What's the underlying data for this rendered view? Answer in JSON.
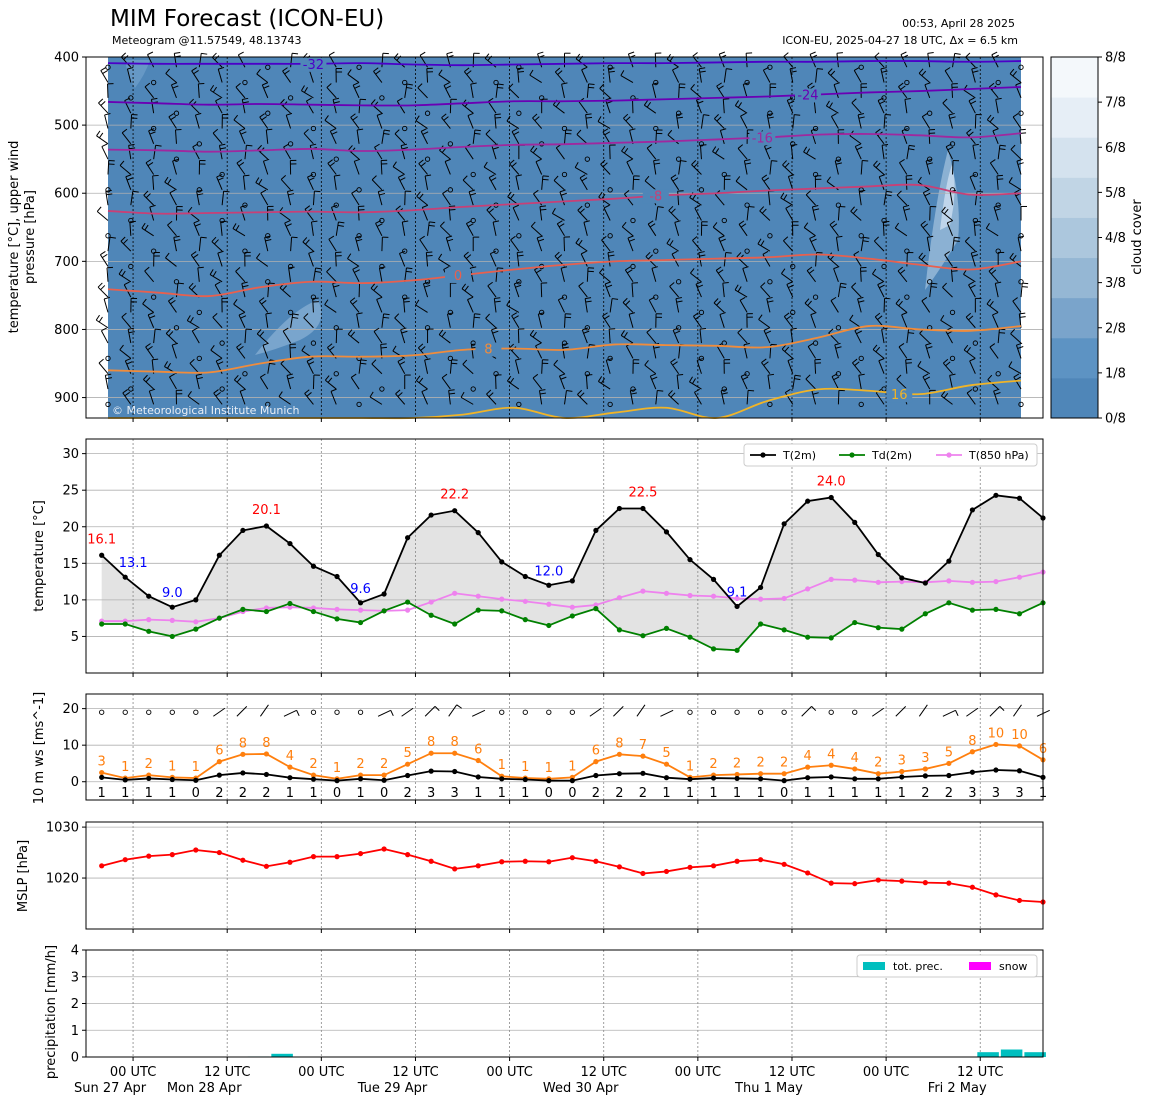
{
  "header": {
    "title": "MIM Forecast (ICON-EU)",
    "subtitle": "Meteogram @11.57549, 48.13743",
    "run_time": "00:53, April 28 2025",
    "run_info": "ICON-EU, 2025-04-27 18 UTC, Δx = 6.5 km",
    "copyright": "© Meteorological Institute Munich"
  },
  "colors": {
    "cloud_base": "#4f86b8",
    "t2m": "#000000",
    "td2m": "#008000",
    "t850": "#ee82ee",
    "tmax": "#ff0000",
    "tmin": "#0000ff",
    "wind_max": "#ff7f0e",
    "wind_mean": "#000000",
    "mslp": "#ff0000",
    "precip": "#00bfbf",
    "snow": "#ff00ff",
    "fill": "#e3e3e3"
  },
  "x_axis": {
    "ticks": [
      {
        "t": 4,
        "label": "00 UTC",
        "day": "Sun 27 Apr"
      },
      {
        "t": 16,
        "label": "12 UTC",
        "day": "Mon 28 Apr"
      },
      {
        "t": 28,
        "label": "00 UTC",
        "day": ""
      },
      {
        "t": 40,
        "label": "12 UTC",
        "day": "Tue 29 Apr"
      },
      {
        "t": 52,
        "label": "00 UTC",
        "day": ""
      },
      {
        "t": 64,
        "label": "12 UTC",
        "day": "Wed 30 Apr"
      },
      {
        "t": 76,
        "label": "00 UTC",
        "day": ""
      },
      {
        "t": 88,
        "label": "12 UTC",
        "day": "Thu 1 May"
      },
      {
        "t": 100,
        "label": "00 UTC",
        "day": ""
      },
      {
        "t": 112,
        "label": "12 UTC",
        "day": "Fri 2 May"
      }
    ],
    "range": [
      -2,
      120
    ]
  },
  "chart_data": [
    {
      "type": "heatmap",
      "name": "upper-air",
      "ylabel": "temperature [$^\\circ$C], upper wind\npressure [hPa]",
      "ylim": [
        930,
        400
      ],
      "yticks": [
        400,
        500,
        600,
        700,
        800,
        900
      ],
      "colorbar": {
        "label": "cloud cover",
        "ticks": [
          "0/8",
          "1/8",
          "2/8",
          "3/8",
          "4/8",
          "5/8",
          "6/8",
          "7/8",
          "8/8"
        ],
        "colors": [
          "#4f86b8",
          "#5d93c3",
          "#7aa4cb",
          "#95b7d4",
          "#acc7dd",
          "#c1d5e5",
          "#d4e2ee",
          "#e6eef6",
          "#f4f8fb"
        ]
      },
      "levels": [
        {
          "label": "-32",
          "color": "#4b00c8",
          "label_t": 27,
          "pressures": [
            409,
            410,
            410,
            410,
            410,
            409,
            411,
            412,
            411,
            410,
            409,
            409,
            408,
            407,
            407,
            406,
            406,
            407,
            406
          ]
        },
        {
          "label": "-24",
          "color": "#6a00b4",
          "label_t": 92,
          "pressures": [
            466,
            468,
            470,
            469,
            470,
            471,
            471,
            468,
            465,
            465,
            464,
            462,
            460,
            458,
            455,
            452,
            450,
            447,
            444
          ]
        },
        {
          "label": "-16",
          "color": "#a0289e",
          "label_t": 86,
          "pressures": [
            536,
            537,
            539,
            537,
            535,
            538,
            536,
            532,
            529,
            528,
            526,
            524,
            521,
            518,
            514,
            513,
            515,
            518,
            512
          ]
        },
        {
          "label": "-8",
          "color": "#c84076",
          "label_t": 72,
          "pressures": [
            626,
            630,
            629,
            628,
            627,
            628,
            625,
            620,
            616,
            612,
            608,
            603,
            600,
            596,
            593,
            590,
            588,
            602,
            600
          ]
        },
        {
          "label": "0",
          "color": "#e8604e",
          "label_t": 46,
          "pressures": [
            741,
            746,
            751,
            738,
            730,
            732,
            728,
            720,
            712,
            705,
            700,
            698,
            696,
            694,
            690,
            696,
            705,
            712,
            700
          ]
        },
        {
          "label": "8",
          "color": "#f08c3c",
          "label_t": 50,
          "pressures": [
            860,
            862,
            863,
            850,
            840,
            840,
            838,
            830,
            828,
            830,
            822,
            823,
            824,
            826,
            812,
            795,
            800,
            802,
            795
          ]
        },
        {
          "label": "16",
          "color": "#f0b428",
          "label_t": 104,
          "pressures": [
            930,
            930,
            930,
            930,
            930,
            930,
            930,
            925,
            915,
            930,
            922,
            915,
            930,
            905,
            888,
            890,
            895,
            882,
            875
          ]
        }
      ]
    },
    {
      "type": "line",
      "name": "temperature",
      "ylabel": "temperature [$^\\circ$C]",
      "ylim": [
        0,
        32
      ],
      "yticks": [
        5,
        10,
        15,
        20,
        25,
        30
      ],
      "x": [
        0,
        3,
        6,
        9,
        12,
        15,
        18,
        21,
        24,
        27,
        30,
        33,
        36,
        39,
        42,
        45,
        48,
        51,
        54,
        57,
        60,
        63,
        66,
        69,
        72,
        75,
        78,
        81,
        84,
        87,
        90,
        93,
        96,
        99,
        102,
        105,
        108,
        111,
        114,
        117,
        120
      ],
      "series": [
        {
          "name": "T(2m)",
          "color": "#000000",
          "values": [
            16.1,
            13.1,
            10.5,
            9.0,
            10.0,
            16.1,
            19.5,
            20.1,
            17.7,
            14.6,
            13.2,
            9.6,
            10.8,
            18.5,
            21.6,
            22.2,
            19.2,
            15.2,
            13.2,
            12.0,
            12.6,
            19.5,
            22.5,
            22.5,
            19.3,
            15.5,
            12.8,
            9.1,
            11.7,
            20.4,
            23.5,
            24.0,
            20.6,
            16.2,
            13.0,
            12.3,
            15.3,
            22.3,
            24.3,
            23.9,
            21.2
          ]
        },
        {
          "name": "Td(2m)",
          "color": "#008000",
          "values": [
            6.7,
            6.7,
            5.7,
            5.0,
            6.0,
            7.5,
            8.7,
            8.4,
            9.5,
            8.4,
            7.4,
            6.9,
            8.5,
            9.7,
            7.9,
            6.7,
            8.6,
            8.5,
            7.3,
            6.5,
            7.8,
            8.8,
            5.9,
            5.1,
            6.1,
            4.9,
            3.3,
            3.1,
            6.7,
            5.9,
            4.9,
            4.8,
            6.9,
            6.2,
            6.0,
            8.1,
            9.6,
            8.6,
            8.7,
            8.1,
            9.6
          ]
        },
        {
          "name": "T(850 hPa)",
          "color": "#ee82ee",
          "values": [
            7.1,
            7.1,
            7.3,
            7.2,
            7.0,
            7.5,
            8.4,
            8.9,
            9.0,
            8.9,
            8.7,
            8.6,
            8.5,
            8.6,
            9.7,
            10.9,
            10.5,
            10.1,
            9.8,
            9.4,
            9.0,
            9.3,
            10.3,
            11.2,
            10.9,
            10.6,
            10.5,
            10.2,
            10.1,
            10.2,
            11.5,
            12.8,
            12.7,
            12.4,
            12.5,
            12.4,
            12.6,
            12.4,
            12.5,
            13.1,
            13.8
          ]
        }
      ],
      "extremes": [
        {
          "kind": "max",
          "t": 0,
          "label": "16.1"
        },
        {
          "kind": "min",
          "t": 3,
          "label": "13.1"
        },
        {
          "kind": "min",
          "t": 9,
          "label": "9.0"
        },
        {
          "kind": "max",
          "t": 21,
          "label": "20.1"
        },
        {
          "kind": "min",
          "t": 33,
          "label": "9.6"
        },
        {
          "kind": "max",
          "t": 45,
          "label": "22.2"
        },
        {
          "kind": "min",
          "t": 57,
          "label": "12.0"
        },
        {
          "kind": "max",
          "t": 69,
          "label": "22.5"
        },
        {
          "kind": "min",
          "t": 81,
          "label": "9.1"
        },
        {
          "kind": "max",
          "t": 93,
          "label": "24.0"
        }
      ],
      "legend": "top-right"
    },
    {
      "type": "line",
      "name": "wind",
      "ylabel": "10 m ws [ms$^{-1}$]",
      "ylim": [
        -5,
        24
      ],
      "yticks": [
        0,
        10,
        20
      ],
      "x": [
        0,
        3,
        6,
        9,
        12,
        15,
        18,
        21,
        24,
        27,
        30,
        33,
        36,
        39,
        42,
        45,
        48,
        51,
        54,
        57,
        60,
        63,
        66,
        69,
        72,
        75,
        78,
        81,
        84,
        87,
        90,
        93,
        96,
        99,
        102,
        105,
        108,
        111,
        114,
        117,
        120
      ],
      "series": [
        {
          "name": "max",
          "color": "#ff7f0e",
          "values": [
            2.5,
            1.0,
            1.8,
            1.2,
            1.0,
            5.5,
            7.5,
            7.6,
            4.0,
            1.8,
            0.8,
            1.8,
            1.8,
            4.8,
            7.8,
            7.8,
            5.8,
            1.5,
            1.0,
            0.8,
            1.2,
            5.5,
            7.5,
            7.0,
            4.8,
            1.2,
            1.8,
            2.0,
            2.2,
            2.2,
            4.0,
            4.5,
            3.5,
            2.2,
            2.8,
            3.5,
            5.0,
            8.2,
            10.2,
            9.8,
            6.0
          ]
        },
        {
          "name": "mean",
          "color": "#000000",
          "values": [
            1.2,
            0.5,
            0.9,
            0.6,
            0.4,
            1.8,
            2.4,
            2.0,
            1.1,
            0.7,
            0.3,
            0.8,
            0.4,
            1.7,
            2.9,
            2.8,
            1.3,
            0.8,
            0.6,
            0.3,
            0.3,
            1.7,
            2.2,
            2.3,
            1.1,
            0.7,
            1.0,
            0.9,
            0.8,
            0.3,
            1.1,
            1.3,
            0.8,
            0.8,
            1.3,
            1.6,
            1.7,
            2.6,
            3.2,
            3.0,
            1.2
          ]
        }
      ],
      "max_labels": [
        "3",
        "1",
        "2",
        "1",
        "1",
        "6",
        "8",
        "8",
        "4",
        "2",
        "1",
        "2",
        "2",
        "5",
        "8",
        "8",
        "6",
        "1",
        "1",
        "1",
        "1",
        "6",
        "8",
        "7",
        "5",
        "1",
        "2",
        "2",
        "2",
        "2",
        "4",
        "4",
        "4",
        "2",
        "3",
        "3",
        "5",
        "8",
        "10",
        "10",
        "6"
      ],
      "mean_labels": [
        "1",
        "1",
        "1",
        "1",
        "0",
        "2",
        "2",
        "2",
        "1",
        "1",
        "0",
        "1",
        "0",
        "2",
        "3",
        "3",
        "1",
        "1",
        "1",
        "0",
        "0",
        "2",
        "2",
        "2",
        "1",
        "1",
        "1",
        "1",
        "1",
        "0",
        "1",
        "1",
        "1",
        "1",
        "1",
        "2",
        "2",
        "3",
        "3",
        "3",
        "1"
      ],
      "barbs": [
        0,
        0,
        0,
        0,
        0,
        1,
        1,
        1,
        2,
        0,
        0,
        0,
        2,
        1,
        2,
        2,
        1,
        0,
        0,
        0,
        0,
        1,
        1,
        1,
        1,
        0,
        0,
        0,
        0,
        0,
        2,
        0,
        0,
        1,
        1,
        1,
        2,
        1,
        2,
        1,
        1
      ]
    },
    {
      "type": "line",
      "name": "mslp",
      "ylabel": "MSLP [hPa]",
      "ylim": [
        1010,
        1031
      ],
      "yticks": [
        1020,
        1030
      ],
      "x": [
        0,
        3,
        6,
        9,
        12,
        15,
        18,
        21,
        24,
        27,
        30,
        33,
        36,
        39,
        42,
        45,
        48,
        51,
        54,
        57,
        60,
        63,
        66,
        69,
        72,
        75,
        78,
        81,
        84,
        87,
        90,
        93,
        96,
        99,
        102,
        105,
        108,
        111,
        114,
        117,
        120
      ],
      "series": [
        {
          "name": "MSLP",
          "color": "#ff0000",
          "values": [
            1022.4,
            1023.6,
            1024.3,
            1024.6,
            1025.5,
            1025.0,
            1023.5,
            1022.3,
            1023.1,
            1024.2,
            1024.2,
            1024.8,
            1025.7,
            1024.6,
            1023.3,
            1021.8,
            1022.4,
            1023.2,
            1023.3,
            1023.2,
            1024.0,
            1023.3,
            1022.2,
            1020.9,
            1021.3,
            1022.1,
            1022.4,
            1023.3,
            1023.6,
            1022.7,
            1021.0,
            1019.0,
            1018.9,
            1019.6,
            1019.4,
            1019.1,
            1019.0,
            1018.2,
            1016.7,
            1015.6,
            1015.3
          ]
        }
      ]
    },
    {
      "type": "bar",
      "name": "precipitation",
      "ylabel": "precipitation [mm/h]",
      "ylim": [
        0,
        4
      ],
      "yticks": [
        0,
        1,
        2,
        3,
        4
      ],
      "series": [
        {
          "name": "tot. prec.",
          "color": "#00bfbf",
          "points": [
            {
              "t": 20,
              "v": 0.02
            },
            {
              "t": 23,
              "v": 0.12
            },
            {
              "t": 113,
              "v": 0.18
            },
            {
              "t": 116,
              "v": 0.28
            },
            {
              "t": 119,
              "v": 0.18
            }
          ]
        },
        {
          "name": "snow",
          "color": "#ff00ff",
          "points": []
        }
      ],
      "legend": "top-right"
    }
  ]
}
